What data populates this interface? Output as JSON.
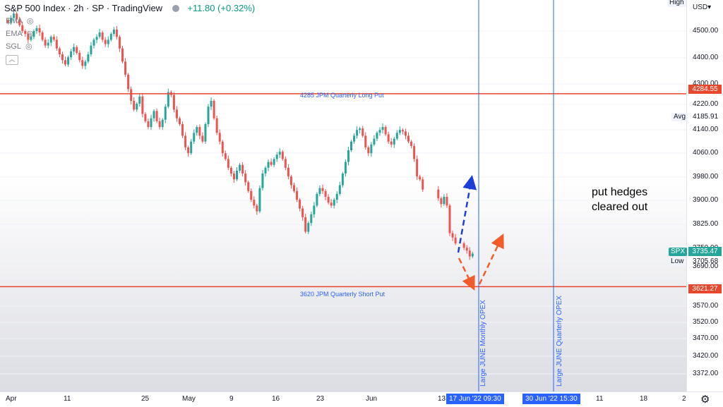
{
  "header": {
    "symbol": "S&P 500 Index",
    "interval": "2h",
    "exchange": "SP",
    "source": "TradingView",
    "change": "+11.80 (+0.32%)"
  },
  "indicators": [
    "EMA",
    "EMA",
    "SGL"
  ],
  "currency": "USD",
  "high_label": "High",
  "price_ticks": [
    "4500.00",
    "4400.00",
    "4300.00",
    "4220.00",
    "4140.00",
    "4060.00",
    "3980.00",
    "3900.00",
    "3825.00",
    "3750.00",
    "3690.00",
    "3570.00",
    "3520.00",
    "3470.00",
    "3420.00",
    "3372.00"
  ],
  "tags": {
    "line1": "4284.55",
    "avg_label": "Avg",
    "avg": "4185.91",
    "spx_label": "SPX",
    "spx": "3735.47",
    "low_label": "Low",
    "low": "3705.68",
    "line2": "3621.27"
  },
  "lines": {
    "long_put": "4285 JPM Quarterly Long Put",
    "short_put": "3620 JPM Quarterly Short Put",
    "monthly_opex": "Large JUNE Monthly OPEX",
    "quarterly_opex": "Large JUNE Quarterly OPEX"
  },
  "note": [
    "put hedges",
    "cleared out"
  ],
  "x_ticks": [
    "Apr",
    "11",
    "25",
    "May",
    "9",
    "16",
    "23",
    "Jun",
    "13",
    "11",
    "18",
    "2"
  ],
  "x_tags": [
    "17 Jun '22   09:30",
    "30 Jun '22   15:30"
  ],
  "colors": {
    "up": "#26a69a",
    "down": "#ef5350",
    "hline": "#e8472c",
    "vline": "#2962ff",
    "arrow_up": "#1e3fd6",
    "arrow_alt": "#f25c2a"
  },
  "chart_data": {
    "type": "candlestick",
    "title": "S&P 500 Index · 2h · SP",
    "ylim": [
      3330,
      4560
    ],
    "y_scale": "linear",
    "horizontal_lines": [
      {
        "value": 4284.55,
        "label": "4285 JPM Quarterly Long Put"
      },
      {
        "value": 3621.27,
        "label": "3620 JPM Quarterly Short Put"
      }
    ],
    "vertical_lines": [
      {
        "x": "17 Jun '22 09:30",
        "label": "Large JUNE Monthly OPEX"
      },
      {
        "x": "30 Jun '22 15:30",
        "label": "Large JUNE Quarterly OPEX"
      }
    ],
    "closes": [
      4530,
      4545,
      4560,
      4540,
      4520,
      4500,
      4490,
      4470,
      4480,
      4500,
      4510,
      4495,
      4470,
      4450,
      4460,
      4480,
      4470,
      4440,
      4420,
      4400,
      4385,
      4410,
      4430,
      4445,
      4425,
      4400,
      4380,
      4395,
      4420,
      4450,
      4470,
      4480,
      4495,
      4470,
      4455,
      4470,
      4490,
      4505,
      4480,
      4440,
      4395,
      4350,
      4300,
      4260,
      4230,
      4250,
      4275,
      4215,
      4190,
      4170,
      4200,
      4225,
      4190,
      4170,
      4195,
      4240,
      4290,
      4280,
      4230,
      4200,
      4180,
      4140,
      4100,
      4080,
      4120,
      4150,
      4170,
      4140,
      4120,
      4180,
      4240,
      4260,
      4200,
      4150,
      4120,
      4080,
      4060,
      4030,
      4010,
      3990,
      4020,
      4040,
      4010,
      3980,
      3950,
      3920,
      3900,
      3880,
      3960,
      4010,
      4030,
      4050,
      4040,
      4060,
      4075,
      4085,
      4060,
      4030,
      4000,
      3970,
      3950,
      3920,
      3890,
      3860,
      3810,
      3840,
      3870,
      3900,
      3940,
      3960,
      3950,
      3930,
      3910,
      3900,
      3920,
      3940,
      3970,
      4010,
      4050,
      4090,
      4120,
      4140,
      4160,
      4165,
      4140,
      4100,
      4080,
      4110,
      4130,
      4150,
      4160,
      4170,
      4145,
      4120,
      4110,
      4130,
      4150,
      4160,
      4155,
      4140,
      4120,
      4105,
      4060,
      4000,
      3990,
      3955,
      3925,
      3905,
      3930,
      3900,
      3805,
      3790,
      3770,
      3755,
      3745,
      3725,
      3735
    ]
  }
}
